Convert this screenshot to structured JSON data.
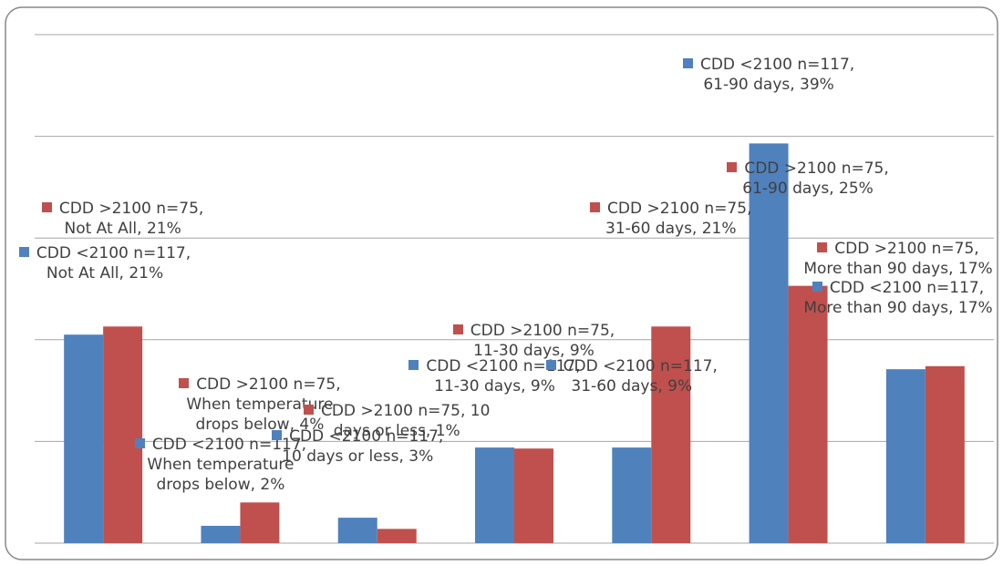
{
  "chart_data": {
    "type": "bar",
    "categories": [
      "Not At All",
      "When temperature drops below",
      "10 days or less",
      "11-30 days",
      "31-60 days",
      "61-90 days",
      "More than 90 days"
    ],
    "series": [
      {
        "name": "CDD <2100 n=117",
        "color": "#4f81bd",
        "values": [
          20.5,
          1.7,
          2.5,
          9.4,
          9.4,
          39.3,
          17.1
        ],
        "value_labels": [
          "CDD <2100 n=117, Not At All, 21%",
          "CDD <2100 n=117, When temperature drops below, 2%",
          "CDD <2100 n=117, 10 days or less, 3%",
          "CDD <2100 n=117, 11-30 days, 9%",
          "CDD <2100 n=117, 31-60 days, 9%",
          "CDD <2100 n=117, 61-90 days, 39%",
          "CDD <2100 n=117, More than 90 days, 17%"
        ]
      },
      {
        "name": "CDD >2100 n=75",
        "color": "#c0504d",
        "values": [
          21.3,
          4.0,
          1.4,
          9.3,
          21.3,
          25.3,
          17.4
        ],
        "value_labels": [
          "CDD >2100 n=75, Not At All, 21%",
          "CDD >2100 n=75, When temperature drops below, 4%",
          "CDD >2100 n=75, 10 days or less, 1%",
          "CDD >2100 n=75, 11-30 days, 9%",
          "CDD >2100 n=75, 31-60 days, 21%",
          "CDD >2100 n=75, 61-90 days, 25%",
          "CDD >2100 n=75, More than 90 days, 17%"
        ]
      }
    ],
    "ylim": [
      0,
      50
    ],
    "yticks": [
      0,
      10,
      20,
      30,
      40,
      50
    ],
    "grid": true
  }
}
